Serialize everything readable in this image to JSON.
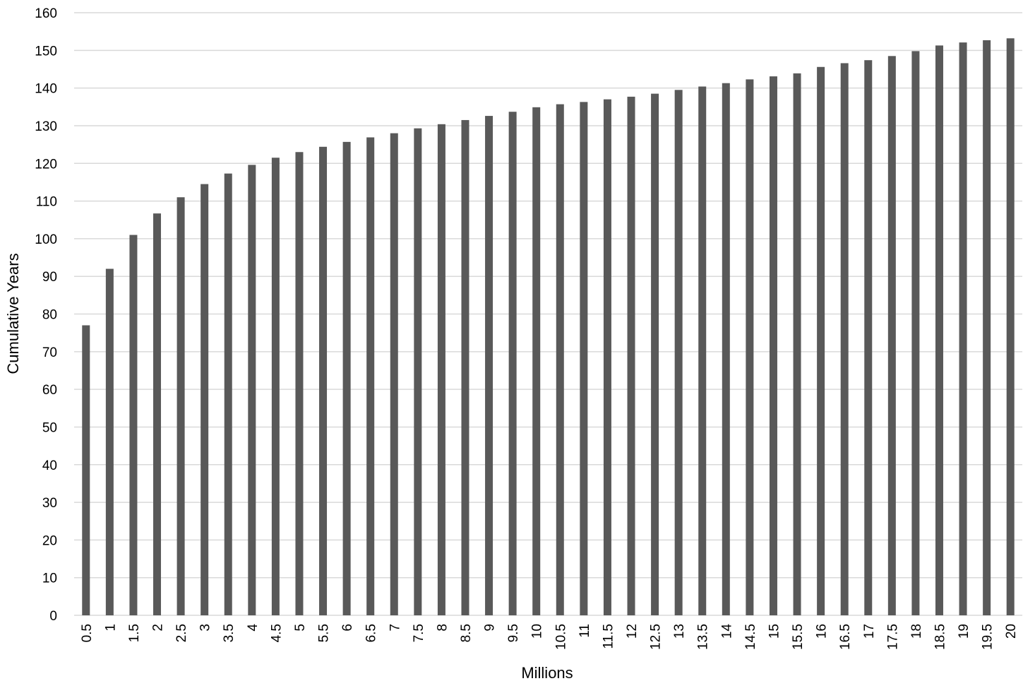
{
  "chart_data": {
    "type": "bar",
    "title": "",
    "xlabel": "Millions",
    "ylabel": "Cumulative Years",
    "ylim": [
      0,
      160
    ],
    "yticks": [
      "0",
      "10",
      "20",
      "30",
      "40",
      "50",
      "60",
      "70",
      "80",
      "90",
      "100",
      "110",
      "120",
      "130",
      "140",
      "150",
      "160"
    ],
    "grid": true,
    "legend": "none",
    "categories": [
      "0.5",
      "1",
      "1.5",
      "2",
      "2.5",
      "3",
      "3.5",
      "4",
      "4.5",
      "5",
      "5.5",
      "6",
      "6.5",
      "7",
      "7.5",
      "8",
      "8.5",
      "9",
      "9.5",
      "10",
      "10.5",
      "11",
      "11.5",
      "12",
      "12.5",
      "13",
      "13.5",
      "14",
      "14.5",
      "15",
      "15.5",
      "16",
      "16.5",
      "17",
      "17.5",
      "18",
      "18.5",
      "19",
      "19.5",
      "20"
    ],
    "values": [
      77,
      92,
      101,
      106.7,
      111,
      114.5,
      117.3,
      119.6,
      121.5,
      123,
      124.4,
      125.7,
      126.9,
      128,
      129.3,
      130.4,
      131.5,
      132.6,
      133.7,
      134.9,
      135.7,
      136.3,
      137,
      137.7,
      138.5,
      139.5,
      140.4,
      141.3,
      142.3,
      143.1,
      143.9,
      145.6,
      146.6,
      147.4,
      148.5,
      149.8,
      151.3,
      152.1,
      152.7,
      153.2
    ],
    "colors": {
      "bar": "#595959",
      "grid": "#d9d9d9",
      "text": "#000000"
    }
  }
}
